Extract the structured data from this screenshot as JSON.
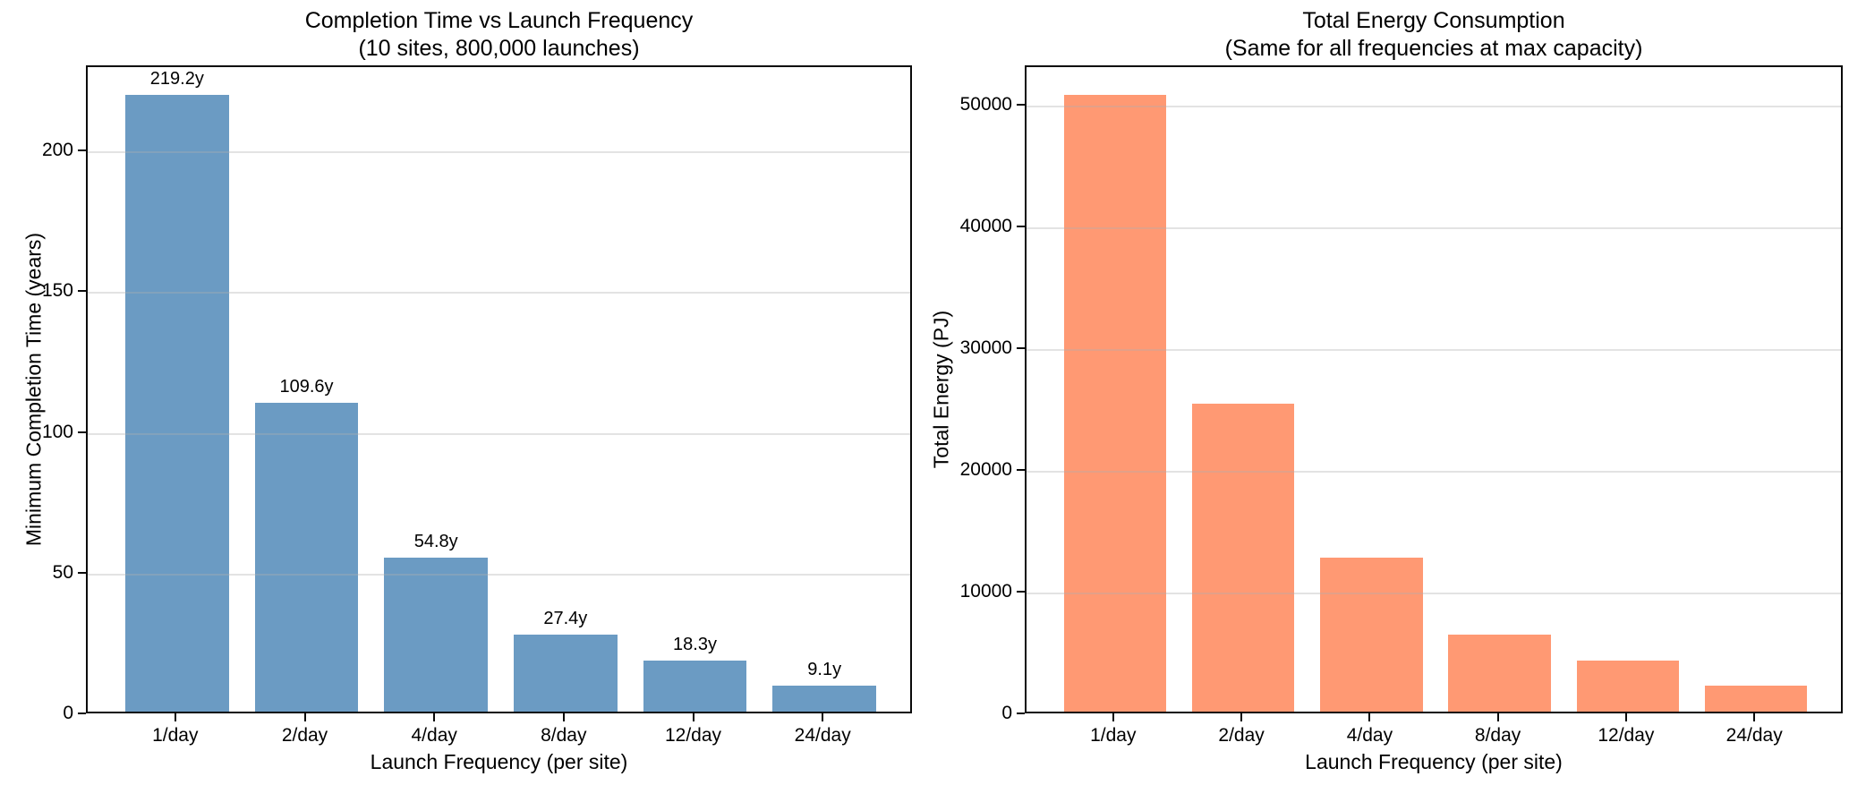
{
  "figure": {
    "background": "#ffffff",
    "text_color": "#000000",
    "grid_color": "#b0b0b0"
  },
  "chart_data": [
    {
      "type": "bar",
      "title": "Completion Time vs Launch Frequency",
      "subtitle": "(10 sites, 800,000 launches)",
      "categories": [
        "1/day",
        "2/day",
        "4/day",
        "8/day",
        "12/day",
        "24/day"
      ],
      "values": [
        219.2,
        109.6,
        54.8,
        27.4,
        18.3,
        9.1
      ],
      "bar_labels": [
        "219.2y",
        "109.6y",
        "54.8y",
        "27.4y",
        "18.3y",
        "9.1y"
      ],
      "xlabel": "Launch Frequency (per site)",
      "ylabel": "Minimum Completion Time (years)",
      "yticks": [
        0,
        50,
        100,
        150,
        200
      ],
      "ylim": [
        0,
        230.3
      ],
      "bar_color": "#6B9BC3",
      "grid": true,
      "legend": "none"
    },
    {
      "type": "bar",
      "title": "Total Energy Consumption",
      "subtitle": "(Same for all frequencies at max capacity)",
      "categories": [
        "1/day",
        "2/day",
        "4/day",
        "8/day",
        "12/day",
        "24/day"
      ],
      "values": [
        50600,
        25300,
        12650,
        6325,
        4217,
        2108
      ],
      "bar_labels": null,
      "xlabel": "Launch Frequency (per site)",
      "ylabel": "Total Energy (PJ)",
      "yticks": [
        0,
        10000,
        20000,
        30000,
        40000,
        50000
      ],
      "ylim": [
        0,
        53200
      ],
      "bar_color": "#FF9973",
      "grid": true,
      "legend": "none"
    }
  ]
}
